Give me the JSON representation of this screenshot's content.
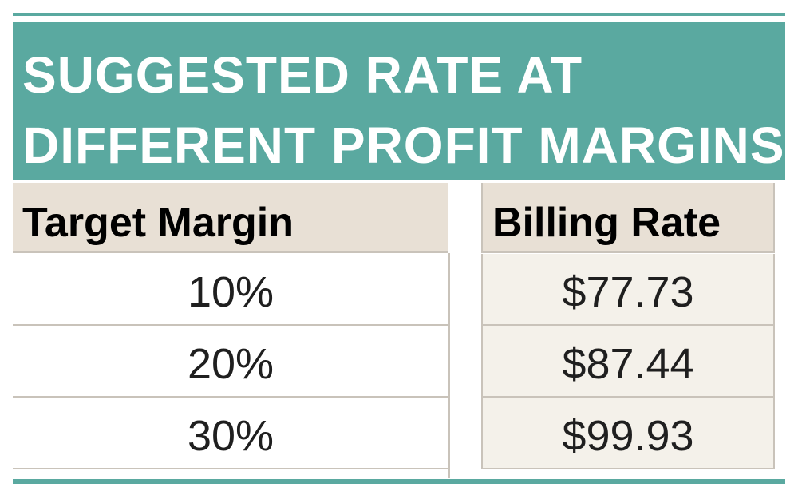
{
  "banner": {
    "title_line1": "SUGGESTED RATE AT",
    "title_line2": "DIFFERENT PROFIT MARGINS"
  },
  "table": {
    "headers": {
      "target_margin": "Target Margin",
      "billing_rate": "Billing Rate"
    },
    "rows": [
      {
        "target_margin": "10%",
        "billing_rate": "$77.73"
      },
      {
        "target_margin": "20%",
        "billing_rate": "$87.44"
      },
      {
        "target_margin": "30%",
        "billing_rate": "$99.93"
      }
    ]
  },
  "colors": {
    "banner_background": "#5aa9a0",
    "header_background": "#e8e0d5",
    "rate_cell_background": "#f4f1ea",
    "grid_line": "#c9c3ba"
  }
}
